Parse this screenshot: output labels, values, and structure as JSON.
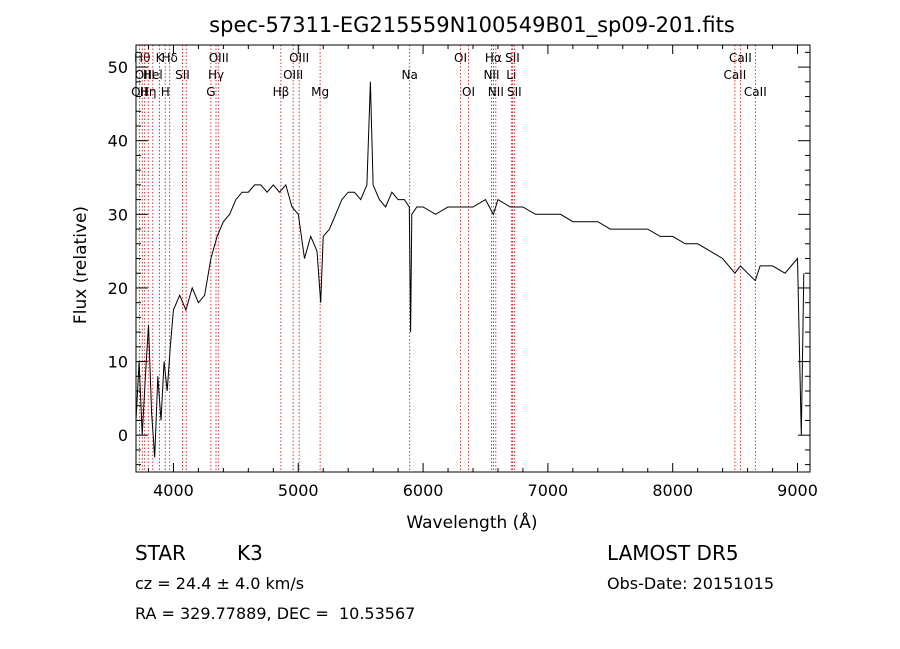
{
  "chart_data": {
    "type": "line",
    "title": "spec-57311-EG215559N100549B01_sp09-201.fits",
    "xlabel": "Wavelength (Å)",
    "ylabel": "Flux (relative)",
    "xlim": [
      3700,
      9100
    ],
    "ylim": [
      -5,
      53
    ],
    "xticks": [
      4000,
      5000,
      6000,
      7000,
      8000,
      9000
    ],
    "yticks": [
      0,
      10,
      20,
      30,
      40,
      50
    ],
    "grid": false,
    "line_color": "#000000",
    "marker_color": "#cc0000",
    "series": [
      {
        "x": [
          3700,
          3725,
          3750,
          3775,
          3800,
          3825,
          3850,
          3875,
          3900,
          3925,
          3950,
          3975,
          4000,
          4050,
          4100,
          4150,
          4200,
          4250,
          4300,
          4350,
          4400,
          4450,
          4500,
          4550,
          4600,
          4650,
          4700,
          4750,
          4800,
          4850,
          4900,
          4950,
          5000,
          5050,
          5100,
          5150,
          5180,
          5200,
          5250,
          5300,
          5350,
          5400,
          5450,
          5500,
          5550,
          5578,
          5600,
          5650,
          5700,
          5750,
          5800,
          5850,
          5890,
          5900,
          5910,
          5950,
          6000,
          6100,
          6200,
          6300,
          6400,
          6500,
          6563,
          6600,
          6700,
          6800,
          6900,
          7000,
          7100,
          7200,
          7300,
          7400,
          7500,
          7600,
          7700,
          7800,
          7900,
          8000,
          8100,
          8200,
          8300,
          8400,
          8498,
          8542,
          8600,
          8662,
          8700,
          8800,
          8900,
          9000,
          9030,
          9050
        ],
        "y": [
          2,
          10,
          0,
          8,
          15,
          3,
          -3,
          8,
          2,
          10,
          6,
          12,
          17,
          19,
          17,
          20,
          18,
          19,
          24,
          27,
          29,
          30,
          32,
          33,
          33,
          34,
          34,
          33,
          34,
          33,
          34,
          31,
          30,
          24,
          27,
          25,
          18,
          27,
          28,
          30,
          32,
          33,
          33,
          32,
          34,
          48,
          34,
          32,
          31,
          33,
          32,
          32,
          31,
          14,
          30,
          31,
          31,
          30,
          31,
          31,
          31,
          32,
          30,
          32,
          31,
          31,
          30,
          30,
          30,
          29,
          29,
          29,
          28,
          28,
          28,
          28,
          27,
          27,
          26,
          26,
          25,
          24,
          22,
          23,
          22,
          21,
          23,
          23,
          22,
          24,
          0,
          22
        ]
      }
    ],
    "line_markers": [
      {
        "x": 3727,
        "label": "OII",
        "row": 2
      },
      {
        "x": 3750,
        "label": "Hθ",
        "row": 0
      },
      {
        "x": 3770,
        "label": "OIII",
        "row": 1
      },
      {
        "x": 3798,
        "label": "Hη",
        "row": 2
      },
      {
        "x": 3835,
        "label": "Hel",
        "row": 1
      },
      {
        "x": 3889,
        "label": "K",
        "row": 0
      },
      {
        "x": 3934,
        "label": "H",
        "row": 2
      },
      {
        "x": 3970,
        "label": "Hδ",
        "row": 0
      },
      {
        "x": 4072,
        "label": "SII",
        "row": 1
      },
      {
        "x": 4102,
        "label": "",
        "row": 0
      },
      {
        "x": 4300,
        "label": "G",
        "row": 2
      },
      {
        "x": 4341,
        "label": "Hγ",
        "row": 1
      },
      {
        "x": 4363,
        "label": "OIII",
        "row": 0
      },
      {
        "x": 4861,
        "label": "Hβ",
        "row": 2
      },
      {
        "x": 4959,
        "label": "OIII",
        "row": 1
      },
      {
        "x": 5007,
        "label": "OIII",
        "row": 0
      },
      {
        "x": 5175,
        "label": "Mg",
        "row": 2
      },
      {
        "x": 5893,
        "label": "Na",
        "row": 1
      },
      {
        "x": 6300,
        "label": "OI",
        "row": 0
      },
      {
        "x": 6364,
        "label": "OI",
        "row": 2
      },
      {
        "x": 6548,
        "label": "NII",
        "row": 1
      },
      {
        "x": 6563,
        "label": "Hα",
        "row": 0
      },
      {
        "x": 6583,
        "label": "NII",
        "row": 2
      },
      {
        "x": 6707,
        "label": "Li",
        "row": 1
      },
      {
        "x": 6716,
        "label": "SII",
        "row": 0
      },
      {
        "x": 6731,
        "label": "SII",
        "row": 2
      },
      {
        "x": 8498,
        "label": "CaII",
        "row": 1
      },
      {
        "x": 8542,
        "label": "CaII",
        "row": 0
      },
      {
        "x": 8662,
        "label": "CaII",
        "row": 2
      }
    ]
  },
  "info": {
    "object_class": "STAR",
    "subclass": "K3",
    "survey": "LAMOST DR5",
    "redshift": "cz = 24.4 ± 4.0 km/s",
    "obs_date": "Obs-Date: 20151015",
    "coords": "RA = 329.77889, DEC =  10.53567"
  }
}
